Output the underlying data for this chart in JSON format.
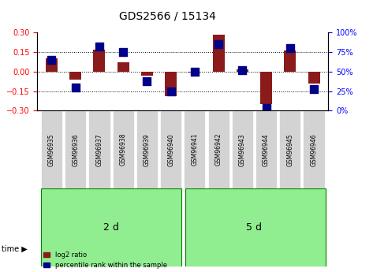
{
  "title": "GDS2566 / 15134",
  "samples": [
    "GSM96935",
    "GSM96936",
    "GSM96937",
    "GSM96938",
    "GSM96939",
    "GSM96940",
    "GSM96941",
    "GSM96942",
    "GSM96943",
    "GSM96944",
    "GSM96945",
    "GSM96946"
  ],
  "log2_ratio": [
    0.105,
    -0.06,
    0.17,
    0.07,
    -0.03,
    -0.19,
    -0.01,
    0.285,
    0.02,
    -0.25,
    0.16,
    -0.09
  ],
  "percentile_rank": [
    65,
    30,
    82,
    75,
    38,
    25,
    50,
    85,
    52,
    3,
    80,
    28
  ],
  "group1_label": "2 d",
  "group2_label": "5 d",
  "group1_count": 6,
  "group2_count": 6,
  "ylim": [
    -0.3,
    0.3
  ],
  "y2lim": [
    0,
    100
  ],
  "y_ticks": [
    -0.3,
    -0.15,
    0,
    0.15,
    0.3
  ],
  "y2_ticks": [
    0,
    25,
    50,
    75,
    100
  ],
  "bar_color": "#8B1A1A",
  "dot_color": "#00008B",
  "group_bg_color": "#90EE90",
  "sample_bg_color": "#D3D3D3",
  "legend_bar_label": "log2 ratio",
  "legend_dot_label": "percentile rank within the sample",
  "time_label": "time",
  "bar_width": 0.5,
  "dot_size": 50
}
